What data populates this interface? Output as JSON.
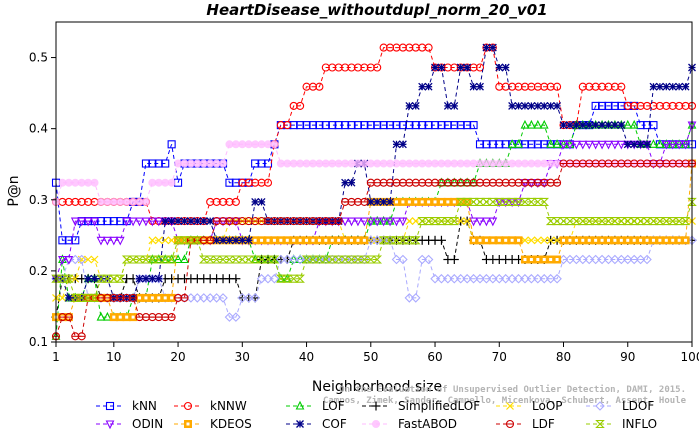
{
  "chart_data": {
    "type": "line",
    "title": "HeartDisease_withoutdupl_norm_20_v01",
    "xlabel": "Neighborhood size",
    "ylabel": "P@n",
    "xlim": [
      1,
      100
    ],
    "ylim": [
      0.1,
      0.55
    ],
    "xticks": [
      1,
      10,
      20,
      30,
      40,
      50,
      60,
      70,
      80,
      90,
      100
    ],
    "yticks": [
      0.1,
      0.2,
      0.3,
      0.4,
      0.5
    ],
    "grid": false,
    "legend_position": "bottom",
    "credit": [
      "On the Evaluation of Unsupervised Outlier Detection, DAMI, 2015.",
      "Campos, Zimek, Sander, Campello, Micenkova, Schubert, Assent, Houle"
    ],
    "series": [
      {
        "name": "kNN",
        "color": "#0000ff",
        "marker": "square",
        "points": [
          [
            1,
            0.324
          ],
          [
            2,
            0.243
          ],
          [
            5,
            0.27
          ],
          [
            10,
            0.27
          ],
          [
            13,
            0.297
          ],
          [
            15,
            0.351
          ],
          [
            19,
            0.378
          ],
          [
            20,
            0.324
          ],
          [
            21,
            0.351
          ],
          [
            25,
            0.351
          ],
          [
            28,
            0.324
          ],
          [
            32,
            0.351
          ],
          [
            35,
            0.378
          ],
          [
            36,
            0.405
          ],
          [
            66,
            0.405
          ],
          [
            67,
            0.378
          ],
          [
            80,
            0.378
          ],
          [
            82,
            0.405
          ],
          [
            85,
            0.432
          ],
          [
            90,
            0.432
          ],
          [
            92,
            0.405
          ],
          [
            95,
            0.378
          ],
          [
            100,
            0.378
          ]
        ]
      },
      {
        "name": "kNNW",
        "color": "#ff0000",
        "marker": "circle",
        "points": [
          [
            1,
            0.297
          ],
          [
            2,
            0.297
          ],
          [
            15,
            0.297
          ],
          [
            16,
            0.27
          ],
          [
            20,
            0.27
          ],
          [
            25,
            0.297
          ],
          [
            29,
            0.297
          ],
          [
            30,
            0.324
          ],
          [
            34,
            0.324
          ],
          [
            35,
            0.378
          ],
          [
            36,
            0.405
          ],
          [
            38,
            0.432
          ],
          [
            40,
            0.459
          ],
          [
            43,
            0.486
          ],
          [
            50,
            0.486
          ],
          [
            52,
            0.514
          ],
          [
            58,
            0.514
          ],
          [
            60,
            0.486
          ],
          [
            66,
            0.486
          ],
          [
            68,
            0.514
          ],
          [
            70,
            0.459
          ],
          [
            78,
            0.459
          ],
          [
            80,
            0.405
          ],
          [
            83,
            0.459
          ],
          [
            88,
            0.459
          ],
          [
            90,
            0.432
          ],
          [
            100,
            0.432
          ]
        ]
      },
      {
        "name": "LOF",
        "color": "#00cc00",
        "marker": "triangle-up",
        "points": [
          [
            1,
            0.108
          ],
          [
            2,
            0.216
          ],
          [
            3,
            0.162
          ],
          [
            6,
            0.189
          ],
          [
            8,
            0.135
          ],
          [
            12,
            0.135
          ],
          [
            13,
            0.162
          ],
          [
            16,
            0.216
          ],
          [
            20,
            0.216
          ],
          [
            22,
            0.243
          ],
          [
            30,
            0.243
          ],
          [
            32,
            0.216
          ],
          [
            36,
            0.189
          ],
          [
            38,
            0.216
          ],
          [
            44,
            0.243
          ],
          [
            50,
            0.27
          ],
          [
            54,
            0.297
          ],
          [
            60,
            0.297
          ],
          [
            61,
            0.324
          ],
          [
            66,
            0.324
          ],
          [
            67,
            0.351
          ],
          [
            72,
            0.378
          ],
          [
            74,
            0.405
          ],
          [
            78,
            0.378
          ],
          [
            82,
            0.405
          ],
          [
            90,
            0.405
          ],
          [
            92,
            0.378
          ],
          [
            100,
            0.405
          ]
        ]
      },
      {
        "name": "SimplifiedLOF",
        "color": "#000000",
        "marker": "plus",
        "points": [
          [
            1,
            0.135
          ],
          [
            2,
            0.189
          ],
          [
            8,
            0.162
          ],
          [
            12,
            0.189
          ],
          [
            14,
            0.162
          ],
          [
            18,
            0.189
          ],
          [
            20,
            0.189
          ],
          [
            24,
            0.189
          ],
          [
            28,
            0.189
          ],
          [
            30,
            0.162
          ],
          [
            33,
            0.216
          ],
          [
            36,
            0.216
          ],
          [
            38,
            0.243
          ],
          [
            60,
            0.243
          ],
          [
            62,
            0.216
          ],
          [
            64,
            0.27
          ],
          [
            66,
            0.243
          ],
          [
            68,
            0.216
          ],
          [
            76,
            0.216
          ],
          [
            78,
            0.243
          ],
          [
            100,
            0.243
          ]
        ]
      },
      {
        "name": "LoOP",
        "color": "#ffdd00",
        "marker": "cross",
        "points": [
          [
            1,
            0.162
          ],
          [
            3,
            0.189
          ],
          [
            5,
            0.216
          ],
          [
            8,
            0.189
          ],
          [
            12,
            0.216
          ],
          [
            16,
            0.243
          ],
          [
            25,
            0.243
          ],
          [
            28,
            0.27
          ],
          [
            40,
            0.27
          ],
          [
            46,
            0.243
          ],
          [
            52,
            0.243
          ],
          [
            56,
            0.27
          ],
          [
            60,
            0.27
          ],
          [
            66,
            0.243
          ],
          [
            78,
            0.243
          ],
          [
            82,
            0.27
          ],
          [
            100,
            0.27
          ]
        ]
      },
      {
        "name": "LDOF",
        "color": "#aaaaff",
        "marker": "diamond",
        "points": [
          [
            1,
            0.189
          ],
          [
            3,
            0.216
          ],
          [
            6,
            0.162
          ],
          [
            10,
            0.162
          ],
          [
            14,
            0.189
          ],
          [
            18,
            0.162
          ],
          [
            22,
            0.162
          ],
          [
            26,
            0.162
          ],
          [
            28,
            0.135
          ],
          [
            30,
            0.162
          ],
          [
            33,
            0.189
          ],
          [
            36,
            0.216
          ],
          [
            40,
            0.216
          ],
          [
            50,
            0.243
          ],
          [
            54,
            0.216
          ],
          [
            56,
            0.162
          ],
          [
            58,
            0.216
          ],
          [
            60,
            0.189
          ],
          [
            66,
            0.189
          ],
          [
            70,
            0.189
          ],
          [
            80,
            0.216
          ],
          [
            86,
            0.216
          ],
          [
            90,
            0.216
          ],
          [
            94,
            0.243
          ],
          [
            100,
            0.243
          ]
        ]
      },
      {
        "name": "ODIN",
        "color": "#8800ff",
        "marker": "triangle-down",
        "points": [
          [
            1,
            0.189
          ],
          [
            2,
            0.216
          ],
          [
            4,
            0.27
          ],
          [
            8,
            0.243
          ],
          [
            12,
            0.27
          ],
          [
            16,
            0.27
          ],
          [
            20,
            0.243
          ],
          [
            26,
            0.27
          ],
          [
            30,
            0.243
          ],
          [
            36,
            0.243
          ],
          [
            42,
            0.27
          ],
          [
            46,
            0.27
          ],
          [
            52,
            0.27
          ],
          [
            56,
            0.297
          ],
          [
            62,
            0.297
          ],
          [
            66,
            0.27
          ],
          [
            70,
            0.297
          ],
          [
            74,
            0.324
          ],
          [
            78,
            0.351
          ],
          [
            80,
            0.378
          ],
          [
            84,
            0.378
          ],
          [
            90,
            0.378
          ],
          [
            94,
            0.351
          ],
          [
            96,
            0.378
          ],
          [
            100,
            0.405
          ]
        ]
      },
      {
        "name": "KDEOS",
        "color": "#ffaa00",
        "marker": "square-filled",
        "points": [
          [
            1,
            0.135
          ],
          [
            4,
            0.162
          ],
          [
            8,
            0.162
          ],
          [
            10,
            0.135
          ],
          [
            14,
            0.162
          ],
          [
            20,
            0.243
          ],
          [
            30,
            0.243
          ],
          [
            34,
            0.243
          ],
          [
            40,
            0.243
          ],
          [
            50,
            0.297
          ],
          [
            56,
            0.297
          ],
          [
            62,
            0.297
          ],
          [
            66,
            0.243
          ],
          [
            70,
            0.243
          ],
          [
            74,
            0.216
          ],
          [
            80,
            0.243
          ],
          [
            90,
            0.243
          ],
          [
            100,
            0.351
          ]
        ]
      },
      {
        "name": "COF",
        "color": "#000088",
        "marker": "asterisk",
        "points": [
          [
            1,
            0.189
          ],
          [
            3,
            0.162
          ],
          [
            6,
            0.189
          ],
          [
            10,
            0.162
          ],
          [
            14,
            0.189
          ],
          [
            18,
            0.27
          ],
          [
            22,
            0.27
          ],
          [
            26,
            0.243
          ],
          [
            30,
            0.243
          ],
          [
            32,
            0.297
          ],
          [
            34,
            0.27
          ],
          [
            38,
            0.27
          ],
          [
            42,
            0.27
          ],
          [
            46,
            0.324
          ],
          [
            48,
            0.351
          ],
          [
            50,
            0.297
          ],
          [
            54,
            0.378
          ],
          [
            56,
            0.432
          ],
          [
            58,
            0.459
          ],
          [
            60,
            0.486
          ],
          [
            62,
            0.432
          ],
          [
            64,
            0.486
          ],
          [
            66,
            0.459
          ],
          [
            68,
            0.514
          ],
          [
            70,
            0.486
          ],
          [
            72,
            0.432
          ],
          [
            76,
            0.432
          ],
          [
            80,
            0.405
          ],
          [
            86,
            0.405
          ],
          [
            90,
            0.378
          ],
          [
            94,
            0.459
          ],
          [
            98,
            0.459
          ],
          [
            100,
            0.486
          ]
        ]
      },
      {
        "name": "FastABOD",
        "color": "#ffbbff",
        "marker": "circle-hollow-filled",
        "points": [
          [
            1,
            0.297
          ],
          [
            2,
            0.324
          ],
          [
            5,
            0.324
          ],
          [
            8,
            0.297
          ],
          [
            12,
            0.297
          ],
          [
            16,
            0.324
          ],
          [
            20,
            0.351
          ],
          [
            24,
            0.351
          ],
          [
            28,
            0.378
          ],
          [
            32,
            0.378
          ],
          [
            36,
            0.351
          ],
          [
            40,
            0.351
          ],
          [
            48,
            0.351
          ],
          [
            56,
            0.351
          ],
          [
            62,
            0.351
          ],
          [
            66,
            0.351
          ],
          [
            72,
            0.351
          ],
          [
            78,
            0.351
          ],
          [
            84,
            0.351
          ],
          [
            92,
            0.351
          ],
          [
            100,
            0.351
          ]
        ]
      },
      {
        "name": "LDF",
        "color": "#cc0000",
        "marker": "circle-dot",
        "points": [
          [
            1,
            0.108
          ],
          [
            2,
            0.135
          ],
          [
            4,
            0.108
          ],
          [
            6,
            0.162
          ],
          [
            10,
            0.162
          ],
          [
            14,
            0.135
          ],
          [
            18,
            0.135
          ],
          [
            20,
            0.162
          ],
          [
            22,
            0.243
          ],
          [
            26,
            0.27
          ],
          [
            30,
            0.27
          ],
          [
            34,
            0.27
          ],
          [
            40,
            0.27
          ],
          [
            46,
            0.297
          ],
          [
            50,
            0.324
          ],
          [
            56,
            0.324
          ],
          [
            62,
            0.324
          ],
          [
            68,
            0.324
          ],
          [
            74,
            0.324
          ],
          [
            80,
            0.351
          ],
          [
            90,
            0.351
          ],
          [
            94,
            0.351
          ],
          [
            100,
            0.351
          ]
        ]
      },
      {
        "name": "INFLO",
        "color": "#99cc00",
        "marker": "hourglass",
        "points": [
          [
            1,
            0.189
          ],
          [
            4,
            0.162
          ],
          [
            8,
            0.189
          ],
          [
            12,
            0.216
          ],
          [
            16,
            0.216
          ],
          [
            20,
            0.243
          ],
          [
            24,
            0.216
          ],
          [
            28,
            0.216
          ],
          [
            32,
            0.216
          ],
          [
            36,
            0.189
          ],
          [
            40,
            0.216
          ],
          [
            46,
            0.216
          ],
          [
            52,
            0.243
          ],
          [
            58,
            0.27
          ],
          [
            64,
            0.297
          ],
          [
            70,
            0.297
          ],
          [
            74,
            0.297
          ],
          [
            78,
            0.27
          ],
          [
            82,
            0.27
          ],
          [
            86,
            0.27
          ],
          [
            90,
            0.27
          ],
          [
            94,
            0.27
          ],
          [
            100,
            0.297
          ]
        ]
      }
    ]
  }
}
